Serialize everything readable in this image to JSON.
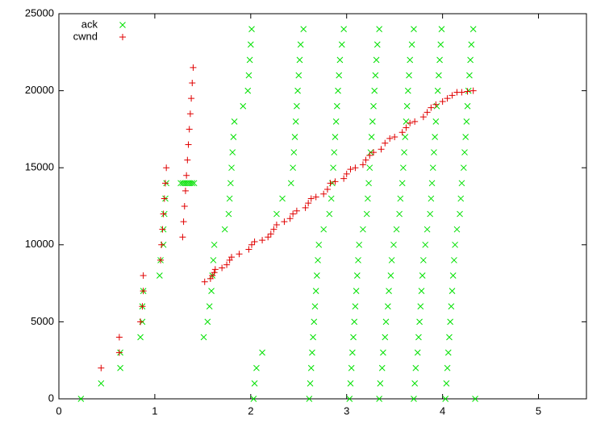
{
  "chart_data": {
    "type": "scatter",
    "xlim": [
      0,
      5.5
    ],
    "ylim": [
      0,
      25000
    ],
    "xticks": [
      0,
      1,
      2,
      3,
      4,
      5
    ],
    "yticks": [
      0,
      5000,
      10000,
      15000,
      20000,
      25000
    ],
    "grid": false,
    "legend": "top-left",
    "series": [
      {
        "name": "ack",
        "color": "#00e000",
        "marker": "x",
        "x": [
          0.23,
          0.44,
          0.64,
          0.64,
          0.85,
          0.87,
          0.87,
          0.88,
          1.05,
          1.06,
          1.09,
          1.09,
          1.1,
          1.11,
          1.12,
          1.27,
          1.29,
          1.31,
          1.33,
          1.35,
          1.37,
          1.39,
          1.41,
          1.51,
          1.55,
          1.57,
          1.59,
          1.6,
          1.61,
          1.62,
          1.73,
          1.77,
          1.78,
          1.79,
          1.8,
          1.81,
          1.82,
          1.83,
          1.92,
          1.97,
          1.98,
          1.99,
          2.0,
          2.01,
          2.03,
          2.04,
          2.06,
          2.12,
          2.27,
          2.33,
          2.42,
          2.44,
          2.45,
          2.46,
          2.47,
          2.48,
          2.49,
          2.5,
          2.51,
          2.52,
          2.55,
          2.61,
          2.62,
          2.63,
          2.64,
          2.65,
          2.66,
          2.67,
          2.68,
          2.69,
          2.7,
          2.71,
          2.76,
          2.82,
          2.84,
          2.85,
          2.86,
          2.87,
          2.88,
          2.89,
          2.9,
          2.91,
          2.92,
          2.93,
          2.95,
          2.97,
          3.03,
          3.04,
          3.05,
          3.06,
          3.07,
          3.08,
          3.09,
          3.1,
          3.11,
          3.12,
          3.13,
          3.17,
          3.21,
          3.22,
          3.23,
          3.24,
          3.25,
          3.26,
          3.27,
          3.28,
          3.29,
          3.3,
          3.31,
          3.32,
          3.34,
          3.34,
          3.35,
          3.37,
          3.38,
          3.4,
          3.41,
          3.43,
          3.44,
          3.46,
          3.47,
          3.49,
          3.52,
          3.55,
          3.56,
          3.58,
          3.59,
          3.6,
          3.61,
          3.62,
          3.63,
          3.64,
          3.65,
          3.66,
          3.68,
          3.7,
          3.7,
          3.71,
          3.72,
          3.74,
          3.75,
          3.76,
          3.77,
          3.78,
          3.79,
          3.8,
          3.82,
          3.84,
          3.87,
          3.88,
          3.89,
          3.9,
          3.91,
          3.92,
          3.93,
          3.94,
          3.95,
          3.96,
          3.97,
          3.98,
          3.99,
          4.03,
          4.04,
          4.05,
          4.06,
          4.07,
          4.08,
          4.09,
          4.1,
          4.11,
          4.12,
          4.13,
          4.15,
          4.18,
          4.19,
          4.2,
          4.22,
          4.23,
          4.24,
          4.25,
          4.26,
          4.27,
          4.28,
          4.29,
          4.3,
          4.32,
          4.34
        ],
        "values": [
          0,
          1000,
          2000,
          3000,
          4000,
          5000,
          6000,
          7000,
          8000,
          9000,
          10000,
          11000,
          12000,
          13000,
          14000,
          14000,
          14000,
          14000,
          14000,
          14000,
          14000,
          14000,
          14000,
          4000,
          5000,
          6000,
          7000,
          8000,
          9000,
          10000,
          11000,
          12000,
          13000,
          14000,
          15000,
          16000,
          17000,
          18000,
          19000,
          20000,
          21000,
          22000,
          23000,
          24000,
          0,
          1000,
          2000,
          3000,
          12000,
          13000,
          14000,
          15000,
          16000,
          17000,
          18000,
          19000,
          20000,
          21000,
          22000,
          23000,
          24000,
          0,
          1000,
          2000,
          3000,
          4000,
          5000,
          6000,
          7000,
          8000,
          9000,
          10000,
          11000,
          12000,
          13000,
          14000,
          15000,
          16000,
          17000,
          18000,
          19000,
          20000,
          21000,
          22000,
          23000,
          24000,
          0,
          1000,
          2000,
          3000,
          4000,
          5000,
          6000,
          7000,
          8000,
          9000,
          10000,
          11000,
          12000,
          13000,
          14000,
          15000,
          16000,
          17000,
          18000,
          19000,
          20000,
          21000,
          22000,
          23000,
          24000,
          0,
          1000,
          2000,
          3000,
          4000,
          5000,
          6000,
          7000,
          8000,
          9000,
          10000,
          11000,
          12000,
          13000,
          14000,
          15000,
          16000,
          17000,
          18000,
          19000,
          20000,
          21000,
          22000,
          23000,
          24000,
          0,
          1000,
          2000,
          3000,
          4000,
          5000,
          6000,
          7000,
          8000,
          9000,
          10000,
          11000,
          12000,
          13000,
          14000,
          15000,
          16000,
          17000,
          18000,
          19000,
          20000,
          21000,
          22000,
          23000,
          24000,
          0,
          1000,
          2000,
          3000,
          4000,
          5000,
          6000,
          7000,
          8000,
          9000,
          10000,
          11000,
          12000,
          13000,
          14000,
          15000,
          16000,
          17000,
          18000,
          19000,
          20000,
          21000,
          22000,
          23000,
          24000,
          0
        ]
      },
      {
        "name": "cwnd",
        "color": "#e00000",
        "marker": "+",
        "x": [
          0.44,
          0.63,
          0.63,
          0.85,
          0.87,
          0.88,
          0.88,
          1.06,
          1.07,
          1.08,
          1.09,
          1.1,
          1.11,
          1.12,
          1.29,
          1.3,
          1.31,
          1.32,
          1.33,
          1.34,
          1.35,
          1.36,
          1.37,
          1.38,
          1.39,
          1.4,
          1.52,
          1.58,
          1.6,
          1.62,
          1.63,
          1.7,
          1.75,
          1.78,
          1.8,
          1.88,
          1.98,
          2.01,
          2.04,
          2.12,
          2.18,
          2.21,
          2.24,
          2.27,
          2.35,
          2.41,
          2.44,
          2.48,
          2.57,
          2.6,
          2.63,
          2.68,
          2.76,
          2.8,
          2.83,
          2.88,
          2.97,
          3.0,
          3.04,
          3.09,
          3.17,
          3.2,
          3.24,
          3.28,
          3.36,
          3.4,
          3.45,
          3.5,
          3.58,
          3.62,
          3.66,
          3.71,
          3.8,
          3.84,
          3.88,
          3.93,
          4.0,
          4.05,
          4.1,
          4.15,
          4.2,
          4.26,
          4.32
        ],
        "values": [
          2000,
          3000,
          4000,
          5000,
          6000,
          7000,
          8000,
          9000,
          10000,
          11000,
          12000,
          13000,
          14000,
          15000,
          10500,
          11500,
          12500,
          13500,
          14500,
          15500,
          16500,
          17500,
          18500,
          19500,
          20500,
          21500,
          7600,
          7800,
          8000,
          8200,
          8400,
          8500,
          8700,
          9000,
          9200,
          9400,
          9700,
          10000,
          10200,
          10300,
          10500,
          10700,
          11000,
          11300,
          11500,
          11700,
          12000,
          12200,
          12400,
          12700,
          13000,
          13100,
          13300,
          13600,
          14000,
          14100,
          14300,
          14600,
          14900,
          15000,
          15200,
          15500,
          15800,
          16000,
          16200,
          16600,
          16900,
          17000,
          17300,
          17600,
          17900,
          18000,
          18300,
          18600,
          18900,
          19100,
          19300,
          19500,
          19700,
          19900,
          19900,
          19950,
          20000
        ]
      }
    ]
  }
}
